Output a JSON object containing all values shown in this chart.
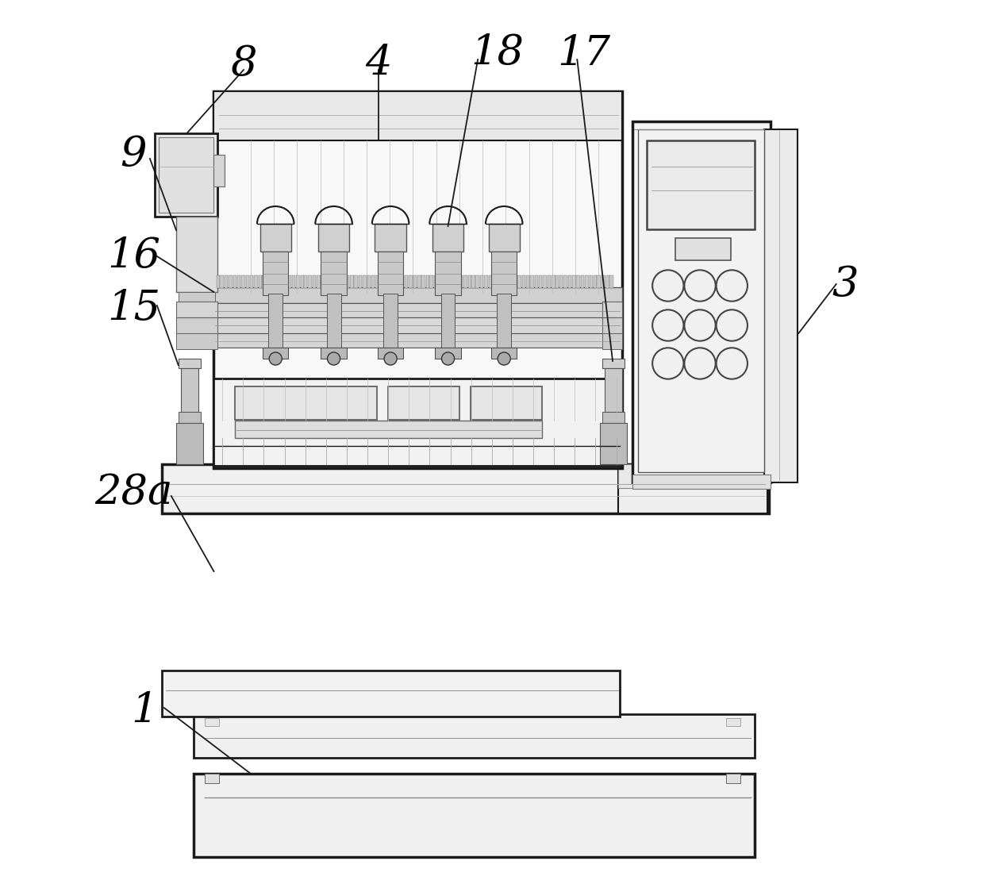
{
  "bg_color": "#ffffff",
  "lc": "#1a1a1a",
  "figsize": [
    12.4,
    11.09
  ],
  "dpi": 100
}
